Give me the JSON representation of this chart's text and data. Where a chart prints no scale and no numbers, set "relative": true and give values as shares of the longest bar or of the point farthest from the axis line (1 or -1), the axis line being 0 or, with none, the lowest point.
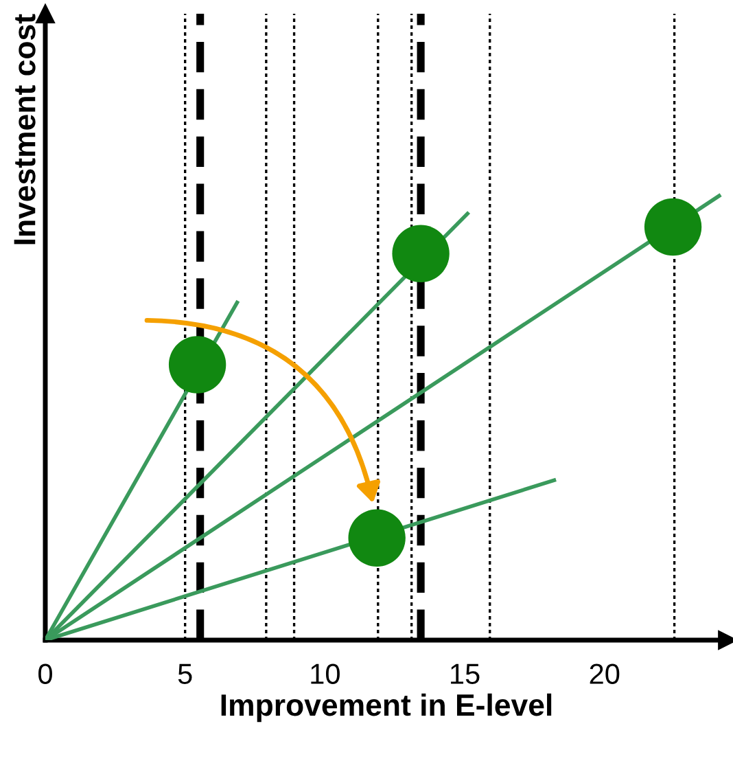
{
  "chart_data": {
    "type": "line",
    "xlabel": "Improvement in E-level",
    "ylabel": "Investment cost",
    "relative": true,
    "xlim": [
      0,
      24.4
    ],
    "xticks": [
      0,
      5,
      10,
      15,
      20
    ],
    "tick_labels": "x",
    "grid": false,
    "series": [
      {
        "color": "#3a9a5c",
        "x": [
          0,
          6.86
        ],
        "values": [
          0,
          0.76
        ]
      },
      {
        "color": "#3a9a5c",
        "x": [
          0,
          15.1
        ],
        "values": [
          0,
          0.96
        ]
      },
      {
        "color": "#3a9a5c",
        "x": [
          0,
          24.1
        ],
        "values": [
          0,
          1.0
        ]
      },
      {
        "color": "#3a9a5c",
        "x": [
          0,
          18.2
        ],
        "values": [
          0,
          0.36
        ]
      },
      {
        "type": "scatter",
        "color": "#118811",
        "marker": "circle",
        "x": [
          5.44,
          13.43,
          22.45,
          11.86
        ],
        "values": [
          0.62,
          0.87,
          0.93,
          0.23
        ]
      }
    ],
    "ref_lines": [
      {
        "axis": "x",
        "value": 5.0,
        "line_style": "dotted",
        "color": "#000000"
      },
      {
        "axis": "x",
        "value": 7.9,
        "line_style": "dotted",
        "color": "#000000"
      },
      {
        "axis": "x",
        "value": 8.9,
        "line_style": "dotted",
        "color": "#000000"
      },
      {
        "axis": "x",
        "value": 11.9,
        "line_style": "dotted",
        "color": "#000000"
      },
      {
        "axis": "x",
        "value": 13.1,
        "line_style": "dotted",
        "color": "#000000"
      },
      {
        "axis": "x",
        "value": 15.9,
        "line_style": "dotted",
        "color": "#000000"
      },
      {
        "axis": "x",
        "value": 22.5,
        "line_style": "dotted",
        "color": "#000000"
      },
      {
        "axis": "x",
        "value": 5.54,
        "line_style": "dashed",
        "color": "#000000"
      },
      {
        "axis": "x",
        "value": 13.43,
        "line_style": "dashed",
        "color": "#000000"
      }
    ]
  }
}
